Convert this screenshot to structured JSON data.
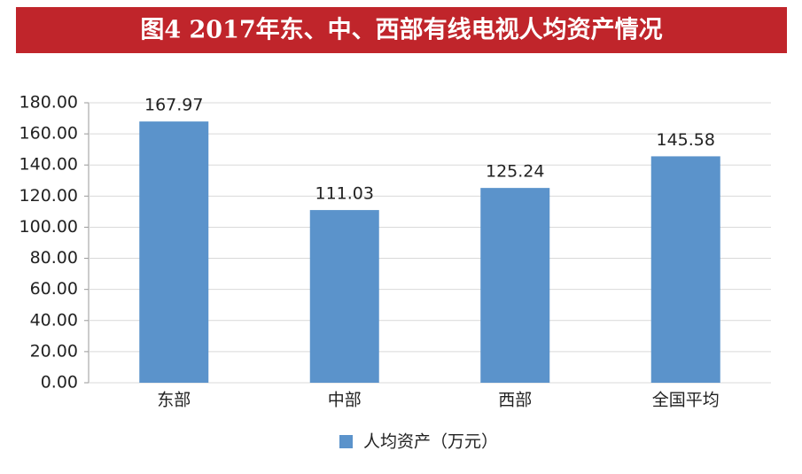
{
  "chart_data": {
    "type": "bar",
    "title": "图4  2017年东、中、西部有线电视人均资产情况",
    "categories": [
      "东部",
      "中部",
      "西部",
      "全国平均"
    ],
    "series": [
      {
        "name": "人均资产（万元）",
        "color": "#5b93cb",
        "values": [
          167.97,
          111.03,
          125.24,
          145.58
        ]
      }
    ],
    "ylim": [
      0,
      180
    ],
    "yticks": [
      {
        "value": 0,
        "label": "0.00"
      },
      {
        "value": 20,
        "label": "20.00"
      },
      {
        "value": 40,
        "label": "40.00"
      },
      {
        "value": 60,
        "label": "60.00"
      },
      {
        "value": 80,
        "label": "80.00"
      },
      {
        "value": 100,
        "label": "100.00"
      },
      {
        "value": 120,
        "label": "120.00"
      },
      {
        "value": 140,
        "label": "140.00"
      },
      {
        "value": 160,
        "label": "160.00"
      },
      {
        "value": 180,
        "label": "180.00"
      }
    ],
    "grid": true,
    "legend": "bottom"
  }
}
